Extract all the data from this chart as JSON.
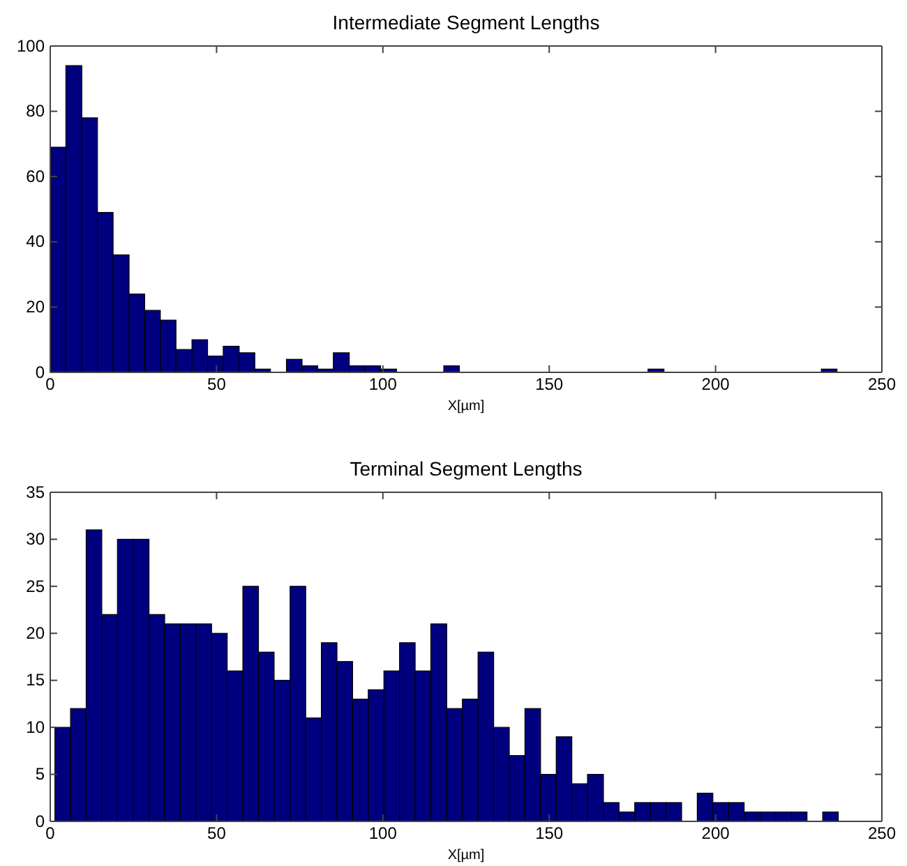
{
  "chart_data": [
    {
      "type": "histogram",
      "title": "Intermediate Segment Lengths",
      "xlabel": "X[µm]",
      "color": "#00007f",
      "bins": [
        0,
        4.7,
        9.5,
        14.2,
        18.9,
        23.7,
        28.4,
        33.1,
        37.8,
        42.6,
        47.3,
        52,
        56.8,
        61.5,
        66.2,
        71,
        75.7,
        80.4,
        85.1,
        89.9,
        94.6,
        99.3,
        104.1,
        108.8,
        113.5,
        118.3,
        123,
        127.7,
        132.4,
        137.2,
        141.9,
        146.6,
        151.4,
        156.1,
        160.8,
        165.6,
        170.3,
        175,
        179.7,
        184.5,
        189.2,
        193.9,
        198.7,
        203.4,
        208.1,
        212.9,
        217.6,
        222.3,
        227,
        231.8,
        236.5
      ],
      "values": [
        69,
        94,
        78,
        49,
        36,
        24,
        19,
        16,
        7,
        10,
        5,
        8,
        6,
        1,
        0,
        4,
        2,
        1,
        6,
        2,
        2,
        1,
        0,
        0,
        0,
        2,
        0,
        0,
        0,
        0,
        0,
        0,
        0,
        0,
        0,
        0,
        0,
        0,
        1,
        0,
        0,
        0,
        0,
        0,
        0,
        0,
        0,
        0,
        0,
        1
      ],
      "xlim": [
        0,
        250
      ],
      "xticks": [
        0,
        50,
        100,
        150,
        200,
        250
      ],
      "ylim": [
        0,
        100
      ],
      "yticks": [
        0,
        20,
        40,
        60,
        80,
        100
      ],
      "grid": false
    },
    {
      "type": "histogram",
      "title": "Terminal Segment Lengths",
      "xlabel": "X[µm]",
      "color": "#00007f",
      "bins": [
        1.4,
        6.1,
        10.8,
        15.5,
        20.2,
        25,
        29.7,
        34.4,
        39.1,
        43.8,
        48.5,
        53.2,
        57.9,
        62.6,
        67.3,
        72.1,
        76.8,
        81.5,
        86.2,
        90.9,
        95.6,
        100.3,
        105,
        109.7,
        114.4,
        119.2,
        123.9,
        128.6,
        133.3,
        138,
        142.7,
        147.4,
        152.1,
        156.8,
        161.5,
        166.3,
        171,
        175.7,
        180.4,
        185.1,
        189.8,
        194.5,
        199.2,
        203.9,
        208.6,
        213.4,
        218.1,
        222.8,
        227.5,
        232.2,
        236.9
      ],
      "values": [
        10,
        12,
        31,
        22,
        30,
        30,
        22,
        21,
        21,
        21,
        20,
        16,
        25,
        18,
        15,
        25,
        11,
        19,
        17,
        13,
        14,
        16,
        19,
        16,
        21,
        12,
        13,
        18,
        10,
        7,
        12,
        5,
        9,
        4,
        5,
        2,
        1,
        2,
        2,
        2,
        0,
        3,
        2,
        2,
        1,
        1,
        1,
        1,
        0,
        1
      ],
      "xlim": [
        0,
        250
      ],
      "xticks": [
        0,
        50,
        100,
        150,
        200,
        250
      ],
      "ylim": [
        0,
        35
      ],
      "yticks": [
        0,
        5,
        10,
        15,
        20,
        25,
        30,
        35
      ],
      "grid": false
    }
  ]
}
